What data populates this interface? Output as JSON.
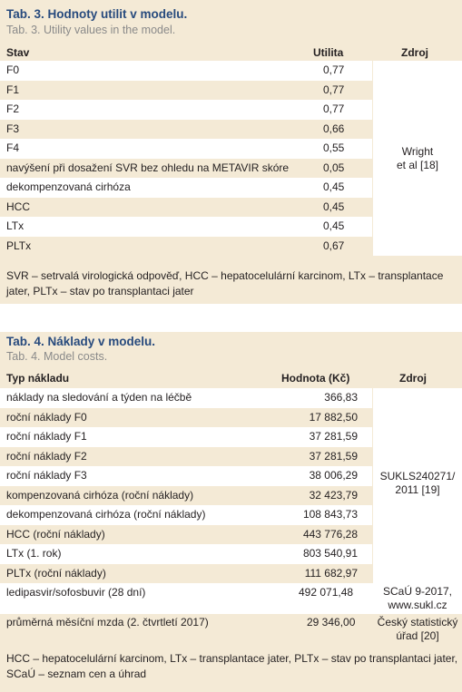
{
  "table3": {
    "title": "Tab. 3. Hodnoty utilit v modelu.",
    "subtitle": "Tab. 3. Utility values in the model.",
    "headers": {
      "state": "Stav",
      "utility": "Utilita",
      "source": "Zdroj"
    },
    "rows": [
      {
        "label": "F0",
        "value": "0,77"
      },
      {
        "label": "F1",
        "value": "0,77"
      },
      {
        "label": "F2",
        "value": "0,77"
      },
      {
        "label": "F3",
        "value": "0,66"
      },
      {
        "label": "F4",
        "value": "0,55"
      },
      {
        "label": "navýšení při dosažení SVR bez ohledu na METAVIR skóre",
        "value": "0,05"
      },
      {
        "label": "dekompenzovaná cirhóza",
        "value": "0,45"
      },
      {
        "label": "HCC",
        "value": "0,45"
      },
      {
        "label": "LTx",
        "value": "0,45"
      },
      {
        "label": "PLTx",
        "value": "0,67"
      }
    ],
    "source_line1": "Wright",
    "source_line2": "et al [18]",
    "note_line1": "SVR – setrvalá virologická odpověď, HCC – hepatocelulární karcinom, LTx – transplantace",
    "note_line2": "jater, PLTx – stav po transplantaci jater"
  },
  "table4": {
    "title": "Tab. 4. Náklady v modelu.",
    "subtitle": "Tab. 4. Model costs.",
    "headers": {
      "type": "Typ nákladu",
      "value": "Hodnota (Kč)",
      "source": "Zdroj"
    },
    "rows": [
      {
        "label": "náklady na sledování a týden na léčbě",
        "value": "366,83"
      },
      {
        "label": "roční náklady F0",
        "value": "17 882,50"
      },
      {
        "label": "roční náklady F1",
        "value": "37 281,59"
      },
      {
        "label": "roční náklady F2",
        "value": "37 281,59"
      },
      {
        "label": "roční náklady F3",
        "value": "38 006,29"
      },
      {
        "label": "kompenzovaná cirhóza (roční náklady)",
        "value": "32 423,79"
      },
      {
        "label": "dekompenzovaná cirhóza (roční náklady)",
        "value": "108 843,73"
      },
      {
        "label": "HCC (roční náklady)",
        "value": "443 776,28"
      },
      {
        "label": "LTx (1. rok)",
        "value": "803 540,91"
      },
      {
        "label": "PLTx (roční náklady)",
        "value": "111 682,97"
      },
      {
        "label": "ledipasvir/sofosbuvir (28 dní)",
        "value": "492 071,48"
      },
      {
        "label": "průměrná měsíční mzda (2. čtvrtletí 2017)",
        "value": "29 346,00"
      }
    ],
    "source_a_line1": "SUKLS240271/",
    "source_a_line2": "2011 [19]",
    "source_b_line1": "SCaÚ 9-2017,",
    "source_b_line2": "www.sukl.cz",
    "source_c_line1": "Český statistický",
    "source_c_line2": "úřad [20]",
    "note_line1": "HCC – hepatocelulární karcinom, LTx – transplantace jater, PLTx – stav po transplantaci jater,",
    "note_line2": "SCaÚ – seznam cen a úhrad"
  }
}
